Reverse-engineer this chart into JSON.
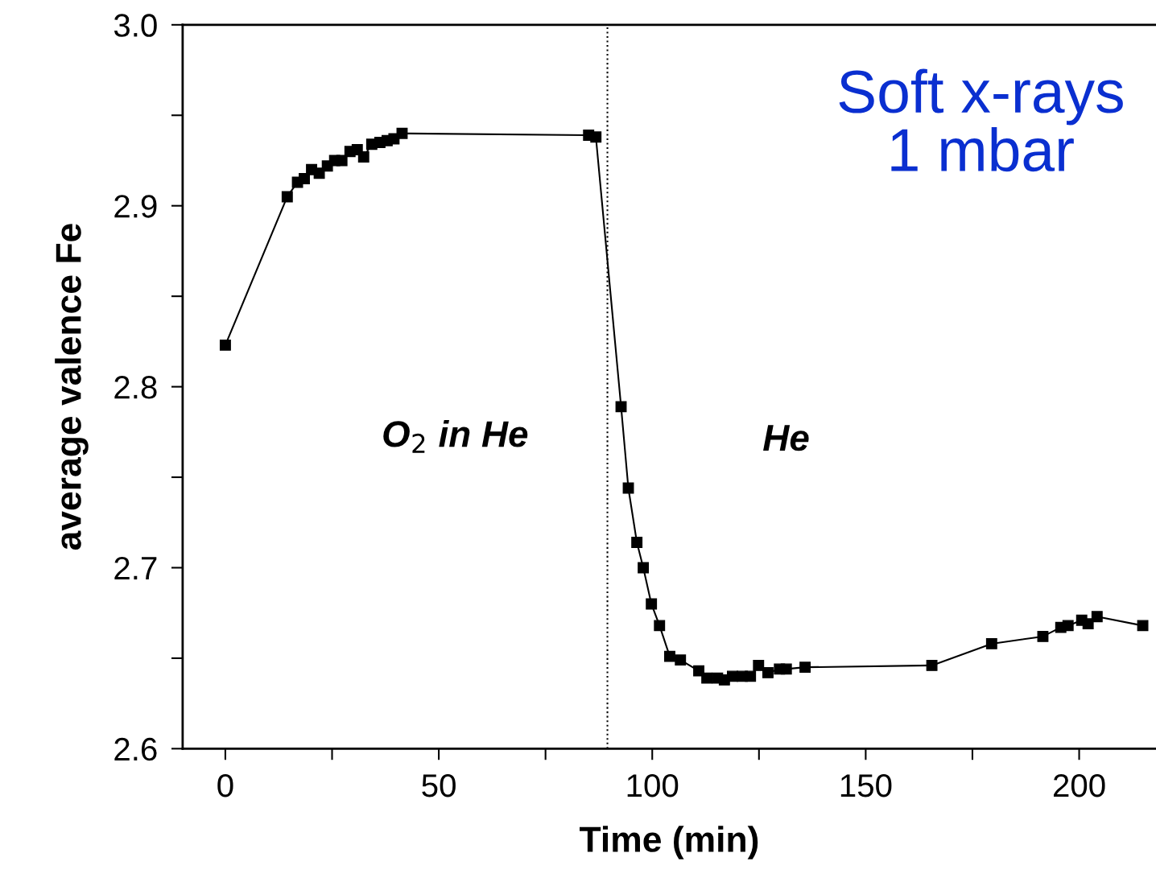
{
  "chart_data": {
    "type": "line",
    "xlabel": "Time (min)",
    "ylabel": "average valence Fe",
    "x": [
      0,
      14.5,
      16.9,
      18.5,
      20.2,
      22.0,
      23.9,
      25.6,
      27.3,
      29.2,
      30.9,
      32.4,
      34.3,
      36.2,
      37.9,
      39.5,
      41.4,
      85.1,
      86.8,
      92.7,
      94.4,
      96.4,
      97.9,
      99.8,
      101.7,
      104.1,
      106.6,
      110.9,
      112.8,
      115.3,
      116.9,
      118.8,
      121.1,
      123.0,
      124.9,
      127.1,
      129.8,
      131.4,
      135.8,
      165.5,
      179.5,
      191.5,
      195.7,
      197.4,
      200.6,
      202.1,
      204.2,
      214.9
    ],
    "values": [
      2.823,
      2.905,
      2.913,
      2.915,
      2.92,
      2.918,
      2.922,
      2.925,
      2.925,
      2.93,
      2.931,
      2.927,
      2.934,
      2.935,
      2.936,
      2.937,
      2.94,
      2.939,
      2.938,
      2.789,
      2.744,
      2.714,
      2.7,
      2.68,
      2.668,
      2.651,
      2.649,
      2.643,
      2.639,
      2.639,
      2.638,
      2.64,
      2.64,
      2.64,
      2.646,
      2.642,
      2.644,
      2.644,
      2.645,
      2.646,
      2.658,
      2.662,
      2.667,
      2.668,
      2.671,
      2.669,
      2.673,
      2.668
    ],
    "color": "#000000",
    "marker": "square",
    "line_style": "solid",
    "xlim": [
      -10,
      218
    ],
    "ylim": [
      2.6,
      3.0
    ],
    "xticks": [
      0,
      {
        "value": 25,
        "label": null
      },
      50,
      {
        "value": 75,
        "label": null
      },
      100,
      {
        "value": 125,
        "label": null
      },
      150,
      {
        "value": 175,
        "label": null
      },
      200
    ],
    "yticks": [
      2.6,
      {
        "value": 2.65,
        "label": null
      },
      2.7,
      {
        "value": 2.75,
        "label": null
      },
      2.8,
      {
        "value": 2.85,
        "label": null
      },
      2.9,
      {
        "value": 2.95,
        "label": null
      },
      {
        "value": 3.0,
        "label": "3.0"
      }
    ],
    "ref_lines": [
      {
        "axis": "x",
        "value": 89.5,
        "line_style": "dotted",
        "color": "#000000"
      }
    ],
    "annotations": [
      "Soft x-rays\n1 mbar",
      "O$_{2}$ in He",
      "He"
    ],
    "grid": false,
    "legend": false
  }
}
